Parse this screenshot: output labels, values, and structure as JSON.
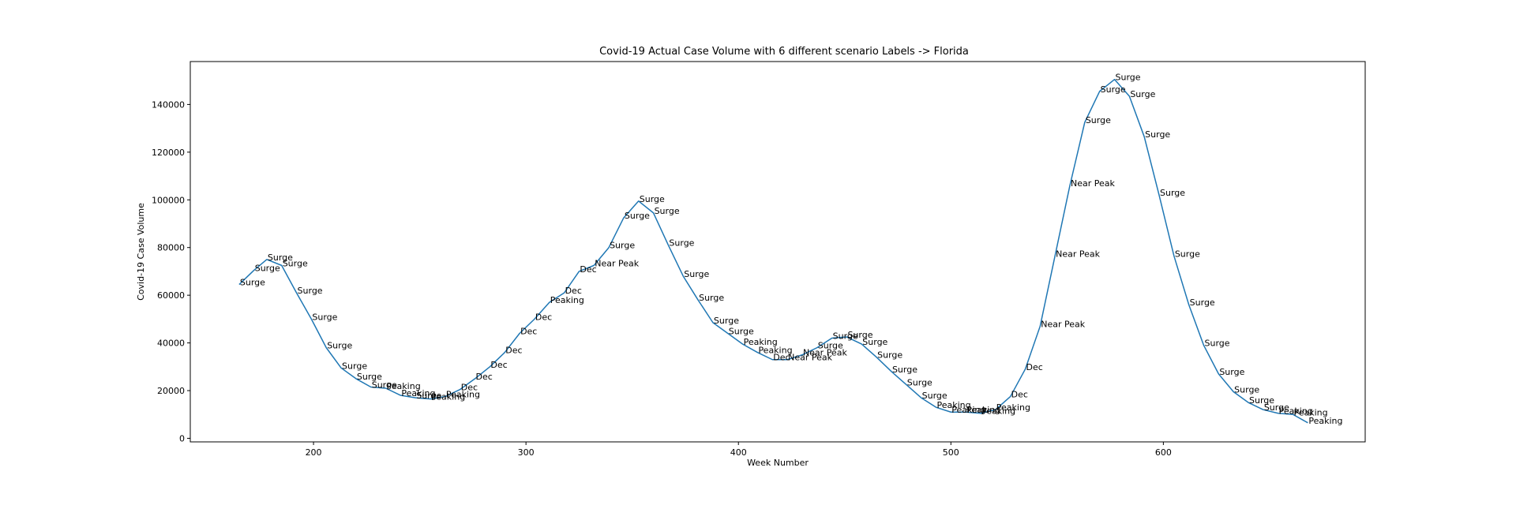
{
  "chart_data": {
    "type": "line",
    "title": "Covid-19 Actual Case Volume with 6 different scenario Labels  -> Florida",
    "xlabel": "Week Number",
    "ylabel": "Covid-19 Case Volume",
    "xlim": [
      142,
      695
    ],
    "ylim": [
      -1500,
      158000
    ],
    "xticks": [
      200,
      300,
      400,
      500,
      600
    ],
    "yticks": [
      0,
      20000,
      40000,
      60000,
      80000,
      100000,
      120000,
      140000
    ],
    "grid": false,
    "line_color": "#1f77b4",
    "series": [
      {
        "x": [
          165,
          172,
          178,
          185,
          192,
          199,
          206,
          213,
          220,
          227,
          234,
          241,
          248,
          255,
          262,
          269,
          276,
          283,
          290,
          297,
          304,
          311,
          318,
          325,
          332,
          339,
          346,
          353,
          360,
          367,
          374,
          381,
          388,
          395,
          402,
          409,
          416,
          423,
          430,
          437,
          444,
          451,
          458,
          465,
          472,
          479,
          486,
          493,
          500,
          507,
          514,
          521,
          528,
          535,
          542,
          549,
          556,
          563,
          570,
          577,
          584,
          591,
          598,
          605,
          612,
          619,
          626,
          633,
          640,
          647,
          654,
          661,
          668
        ],
        "y": [
          64500,
          70500,
          75000,
          72500,
          61000,
          50000,
          38000,
          29500,
          25000,
          21500,
          21000,
          18000,
          17000,
          16500,
          17500,
          20500,
          25000,
          30000,
          36000,
          44000,
          50000,
          57000,
          61000,
          70000,
          72500,
          80000,
          92500,
          99500,
          94500,
          81000,
          68000,
          58000,
          48500,
          44000,
          39500,
          36000,
          33000,
          33000,
          35000,
          38000,
          42000,
          42500,
          39500,
          34000,
          28000,
          22500,
          17000,
          13000,
          11000,
          11000,
          10500,
          12000,
          17500,
          29000,
          47000,
          76500,
          106000,
          132500,
          145500,
          150500,
          143500,
          126500,
          102000,
          76500,
          56000,
          39000,
          27000,
          19500,
          15000,
          12000,
          10500,
          10000,
          6500
        ],
        "labels": [
          "Surge",
          "Surge",
          "Surge",
          "Surge",
          "Surge",
          "Surge",
          "Surge",
          "Surge",
          "Surge",
          "Surge",
          "Peaking",
          "Peaking",
          "Surge",
          "Peaking",
          "Peaking",
          "Dec",
          "Dec",
          "Dec",
          "Dec",
          "Dec",
          "Dec",
          "Peaking",
          "Dec",
          "Dec",
          "Near Peak",
          "Surge",
          "Surge",
          "Surge",
          "Surge",
          "Surge",
          "Surge",
          "Surge",
          "Surge",
          "Surge",
          "Peaking",
          "Peaking",
          "Dec",
          "Near Peak",
          "Near Peak",
          "Surge",
          "Surge",
          "Surge",
          "Surge",
          "Surge",
          "Surge",
          "Surge",
          "Surge",
          "Peaking",
          "Peaking",
          "Peaking",
          "Peaking",
          "Peaking",
          "Dec",
          "Dec",
          "Near Peak",
          "Near Peak",
          "Near Peak",
          "Surge",
          "Surge",
          "Surge",
          "Surge",
          "Surge",
          "Surge",
          "Surge",
          "Surge",
          "Surge",
          "Surge",
          "Surge",
          "Surge",
          "Surge",
          "Peaking",
          "Peaking",
          "Peaking"
        ]
      }
    ]
  }
}
